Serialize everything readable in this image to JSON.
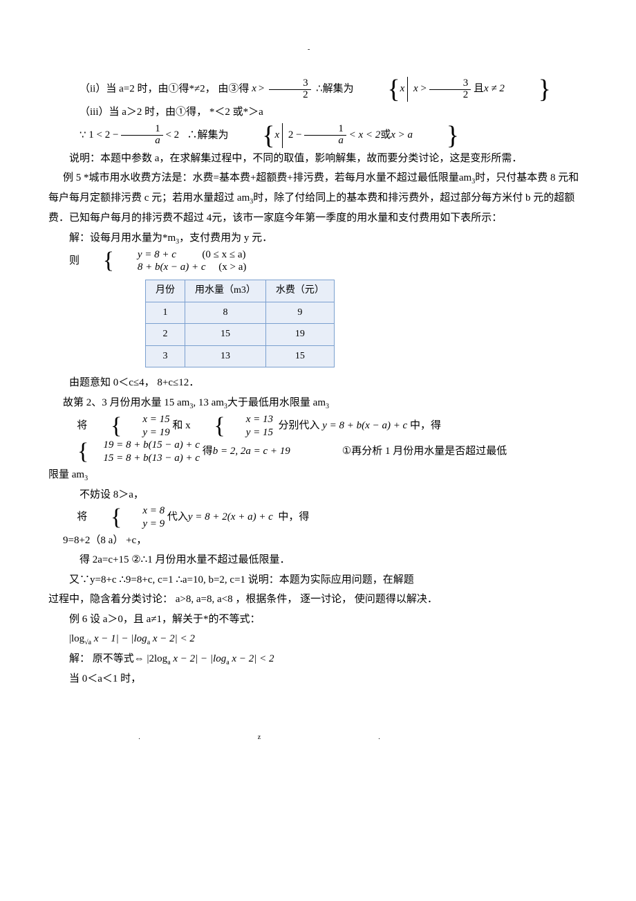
{
  "colors": {
    "text": "#000000",
    "page_bg": "#ffffff",
    "table_border": "#7a9fcf",
    "table_fill": "#e8eef8"
  },
  "fonts": {
    "body_family": "SimSun, serif",
    "math_family": "Times New Roman, serif",
    "body_size_pt": 11,
    "line_height": 1.9
  },
  "l1": {
    "pre": "（ii）当 a=2 时，由①得*≠2，  由③得",
    "mid": "∴解集为"
  },
  "math1": {
    "var": "x",
    "gt": ">",
    "num": "3",
    "den": "2"
  },
  "set1": {
    "lhs": "x",
    "gt": ">",
    "num": "3",
    "den": "2",
    "and": "且",
    "neq": "x ≠ 2"
  },
  "l2": "（iii）当 a＞2 时，由①得，  *＜2 或*＞a",
  "l3_left": "∵",
  "math3": {
    "pre": "1 < 2 −",
    "num": "1",
    "den": "a",
    "post": " < 2"
  },
  "l3_mid": "∴解集为",
  "set3": {
    "lhs": "x",
    "pre": "2 −",
    "num": "1",
    "den": "a",
    "mid": " < x < 2",
    "or": "或",
    "rhs": "x > a"
  },
  "p_explain": "说明：本题中参数 a，在求解集过程中，不同的取值，影响解集，故而要分类讨论，这是变形所需．",
  "p_ex5_1": "例 5 *城市用水收费方法是：水费=基本费+超额费+排污费，若每月水量不超过最低限量am",
  "p_ex5_1b": "时，只付基本费 8 元和每户每月定额排污费 c 元；若用水量超过 am",
  "p_ex5_1c": "时，除了付给同上的基本费和排污费外，超过部分每方米付 b 元的超额费．已知每户每月的排污费不超过 4元，该市一家庭今年第一季度的用水量和支付费用如下表所示：",
  "p_sol_head": "解：设每月用水量为*m",
  "p_sol_head2": "，支付费用为 y 元．",
  "case_pre": "则",
  "case1": {
    "a": "y = 8 + c",
    "b": "(0 ≤ x ≤ a)"
  },
  "case2": {
    "a": "8 + b(x − a) + c",
    "b": "(x > a)"
  },
  "table": {
    "headers": [
      "月份",
      "用水量（m3）",
      "水费（元）"
    ],
    "rows": [
      [
        "1",
        "8",
        "9"
      ],
      [
        "2",
        "15",
        "19"
      ],
      [
        "3",
        "13",
        "15"
      ]
    ]
  },
  "p_a": "由题意知 0＜c≤4，  8+c≤12．",
  "p_b": "故第 2、3 月份用水量 15 am",
  "p_b1": ", 13 am",
  "p_b2": "大于最低用水限量 am",
  "p_c_pre": "将",
  "p_c_mid": "和 x",
  "p_c_post": "分别代入",
  "p_c_tail": "中，得",
  "sys1": {
    "a": "x = 15",
    "b": "y = 19"
  },
  "sys2": {
    "a": "x = 13",
    "b": "y = 15"
  },
  "eqn_insert": "y = 8 + b(x − a) + c",
  "sys3": {
    "a": "19 = 8 + b(15 − a) + c",
    "b": "15 = 8 + b(13 − a) + c"
  },
  "sys3_get": "得",
  "sys3_res": "b = 2, 2a = c + 19",
  "p_d": "①再分析 1 月份用水量是否超过最低",
  "p_e": "限量 am",
  "p_f": "不妨设 8＞a，",
  "p_g_pre": "将",
  "sys4": {
    "a": "x = 8",
    "b": "y = 9"
  },
  "p_g_mid": "代入",
  "eqn_g": "y = 8 + 2(x + a) + c",
  "p_g_tail": "中，得",
  "p_h": "9=8+2（8 a） +c，",
  "p_i": "得 2a=c+15 ②∴1 月份用水量不超过最低限量．",
  "p_j": "又∵y=8+c    ∴9=8+c, c=1    ∴a=10, b=2, c=1  说明：本题为实际应用问题，在解题",
  "p_k": "过程中，隐含着分类讨论：  a>8, a=8, a<8 ，根据条件，  逐一讨论，  使问题得以解决．",
  "p_ex6": "例 6 设 a＞0，且 a≠1，解关于*的不等式：",
  "ineq1": {
    "a": "|log",
    "sub1": "√a",
    "mid": " x − 1| − |log",
    "sub2": "a",
    "tail": " x − 2| < 2"
  },
  "p_sol2": "解：  原不等式",
  "iff": "⇔",
  "ineq2": {
    "a": "|2log",
    "sub": "a",
    "mid": " x − 2| − |log",
    "sub2": "a",
    "tail": " x − 2| < 2"
  },
  "p_last": "当 0＜a＜1 时，",
  "tail_dash": "-",
  "foot1": ".",
  "foot2": "z."
}
